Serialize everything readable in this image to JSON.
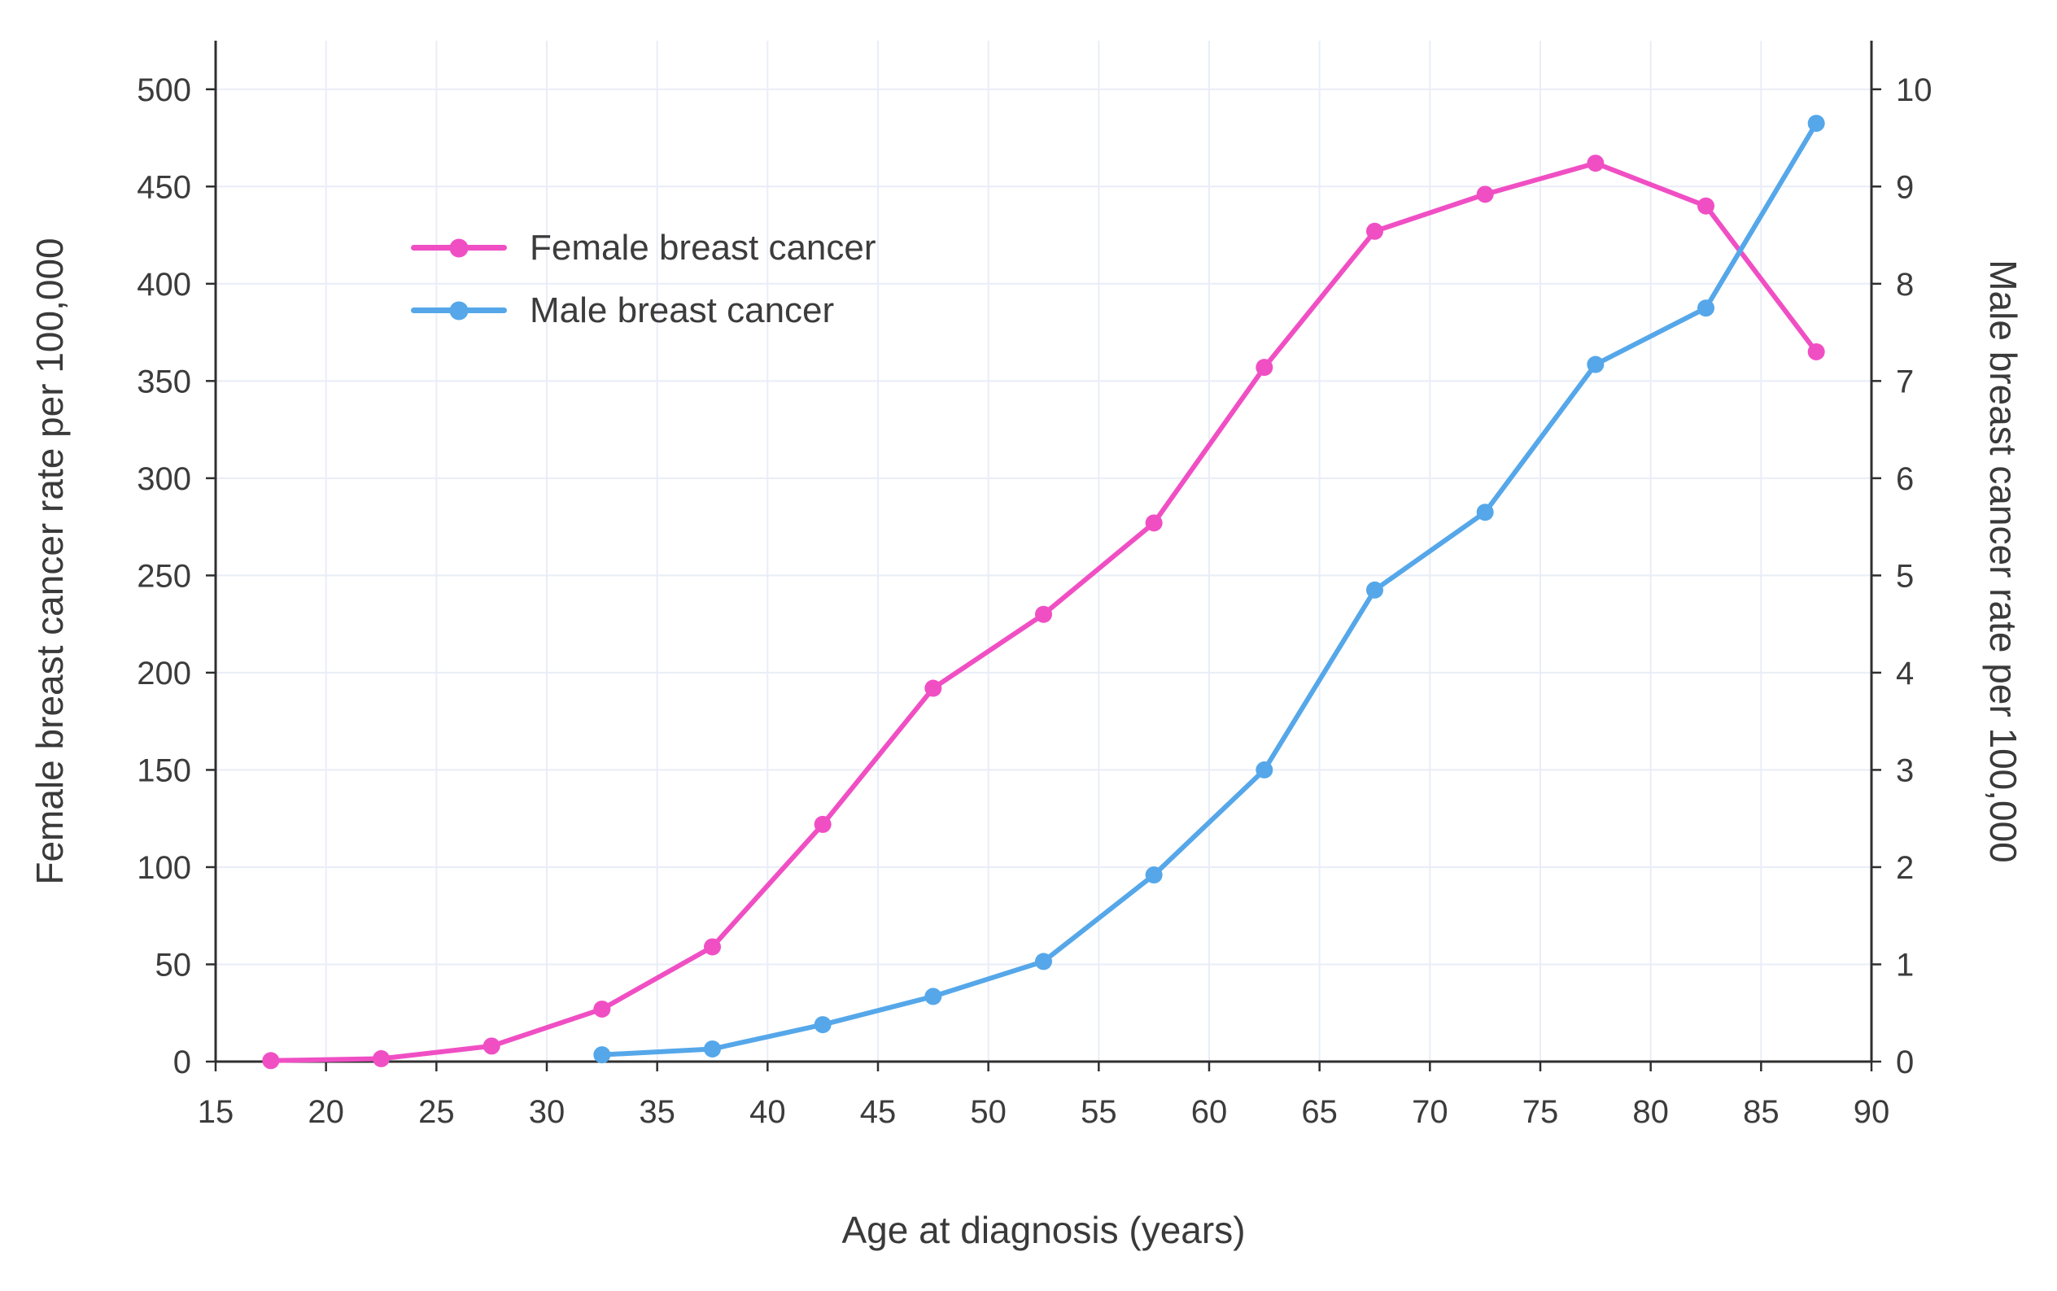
{
  "figure": {
    "background": "#ffffff"
  },
  "chart_data": {
    "type": "line",
    "title": "",
    "xlabel": "Age at diagnosis (years)",
    "ylabel_left": "Female breast cancer rate per 100,000",
    "ylabel_right": "Male breast cancer rate per 100,000",
    "xlim": [
      15,
      90
    ],
    "ylim_left": [
      0,
      525
    ],
    "ylim_right": [
      0,
      10.5
    ],
    "x_ticks": [
      15,
      20,
      25,
      30,
      35,
      40,
      45,
      50,
      55,
      60,
      65,
      70,
      75,
      80,
      85,
      90
    ],
    "y_left_ticks": [
      0,
      50,
      100,
      150,
      200,
      250,
      300,
      350,
      400,
      450,
      500
    ],
    "y_right_ticks": [
      0,
      1,
      2,
      3,
      4,
      5,
      6,
      7,
      8,
      9,
      10
    ],
    "grid": true,
    "legend_position": "upper-left-inside",
    "series": [
      {
        "name": "Female breast cancer",
        "axis": "left",
        "color": "#F04FC4",
        "x": [
          17.5,
          22.5,
          27.5,
          32.5,
          37.5,
          42.5,
          47.5,
          52.5,
          57.5,
          62.5,
          67.5,
          72.5,
          77.5,
          82.5,
          87.5
        ],
        "values": [
          0.5,
          1.5,
          8,
          27,
          59,
          122,
          192,
          230,
          277,
          357,
          427,
          446,
          462,
          440,
          365
        ]
      },
      {
        "name": "Male breast cancer",
        "axis": "right",
        "color": "#55A7E9",
        "x": [
          32.5,
          37.5,
          42.5,
          47.5,
          52.5,
          57.5,
          62.5,
          67.5,
          72.5,
          77.5,
          82.5,
          87.5
        ],
        "values": [
          0.07,
          0.13,
          0.38,
          0.67,
          1.03,
          1.92,
          3,
          4.85,
          5.65,
          7.17,
          7.75,
          9.65
        ]
      }
    ],
    "style": {
      "grid_color": "#E9EDF7",
      "axis_color": "#2F2F2F",
      "text_color": "#3C3C3C",
      "tick_font_size": 40,
      "label_font_size": 46,
      "legend_font_size": 44
    }
  }
}
